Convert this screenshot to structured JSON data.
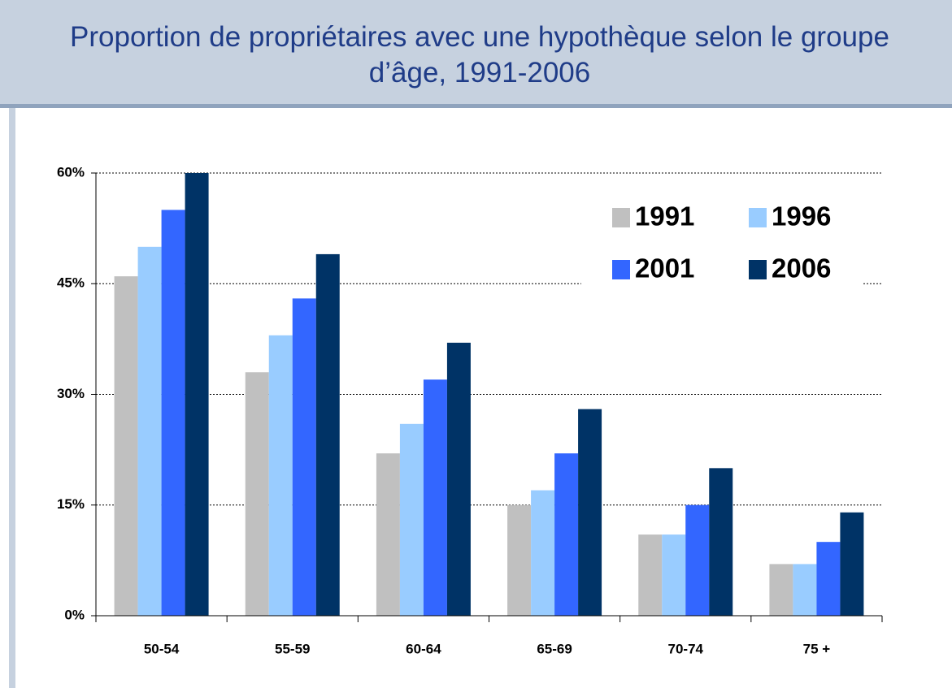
{
  "chart_data": {
    "type": "bar",
    "title": "Proportion de propriétaires avec une hypothèque selon le groupe d’âge, 1991-2006",
    "categories": [
      "50-54",
      "55-59",
      "60-64",
      "65-69",
      "70-74",
      "75 +"
    ],
    "series": [
      {
        "name": "1991",
        "color": "#c0c0c0",
        "values": [
          46,
          33,
          22,
          15,
          11,
          7
        ]
      },
      {
        "name": "1996",
        "color": "#99ccff",
        "values": [
          50,
          38,
          26,
          17,
          11,
          7
        ]
      },
      {
        "name": "2001",
        "color": "#3366ff",
        "values": [
          55,
          43,
          32,
          22,
          15,
          10
        ]
      },
      {
        "name": "2006",
        "color": "#003366",
        "values": [
          60,
          49,
          37,
          28,
          20,
          14
        ]
      }
    ],
    "ylim": [
      0,
      60
    ],
    "yticks": [
      {
        "value": 0,
        "label": "0%"
      },
      {
        "value": 15,
        "label": "15%"
      },
      {
        "value": 30,
        "label": "30%"
      },
      {
        "value": 45,
        "label": "45%"
      },
      {
        "value": 60,
        "label": "60%"
      }
    ],
    "grid": true,
    "legend": "upper right"
  }
}
